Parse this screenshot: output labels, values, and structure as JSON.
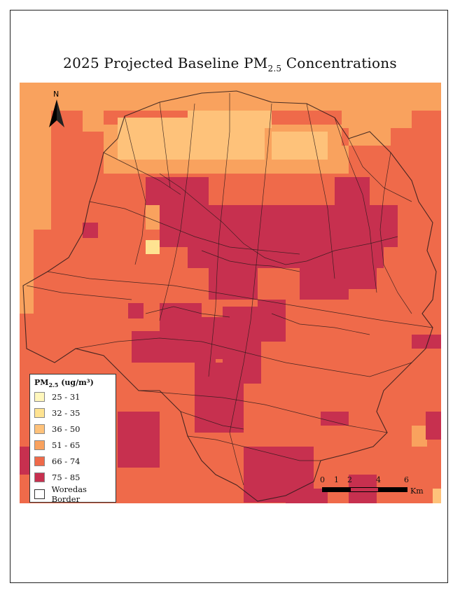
{
  "title": {
    "main": "2025 Projected Baseline PM",
    "sub": "2.5",
    "tail": " Concentrations"
  },
  "north_arrow": {
    "label": "N"
  },
  "legend": {
    "title_main": "PM",
    "title_sub": "2.5",
    "title_tail": " (ug/m³)",
    "classes": [
      {
        "label": "25 - 31",
        "color": "#fff7bc"
      },
      {
        "label": "32 - 35",
        "color": "#fee391"
      },
      {
        "label": "36 - 50",
        "color": "#fec27a"
      },
      {
        "label": "51 - 65",
        "color": "#f9a25e"
      },
      {
        "label": "66 - 74",
        "color": "#ef6a4a"
      },
      {
        "label": "75 - 85",
        "color": "#c7304f"
      }
    ],
    "border_label": "Woredas Border"
  },
  "scalebar": {
    "ticks": [
      "0",
      "1",
      "2",
      "4",
      "6"
    ],
    "unit": "Km"
  },
  "map_data": {
    "grid_rows": [
      "DDDDDDDDDDDDDDDDDDDDDDDDDDDDDDDDDDDDDDDDDDDDDDDDDDDDDDDDDDDDDDDDDDDDDDDDDDDDDDDDDDDDDDDDDDDDDD",
      "DDDDDDDDDDDDDDDDDDDDDDDDDDDDDDDDDDDDDDDDDDDDDDDDDDDDDDDDDDDDDDDDDDDDDDDDDDDDDDDDDDDDDDDDDDDDD"
    ]
  }
}
